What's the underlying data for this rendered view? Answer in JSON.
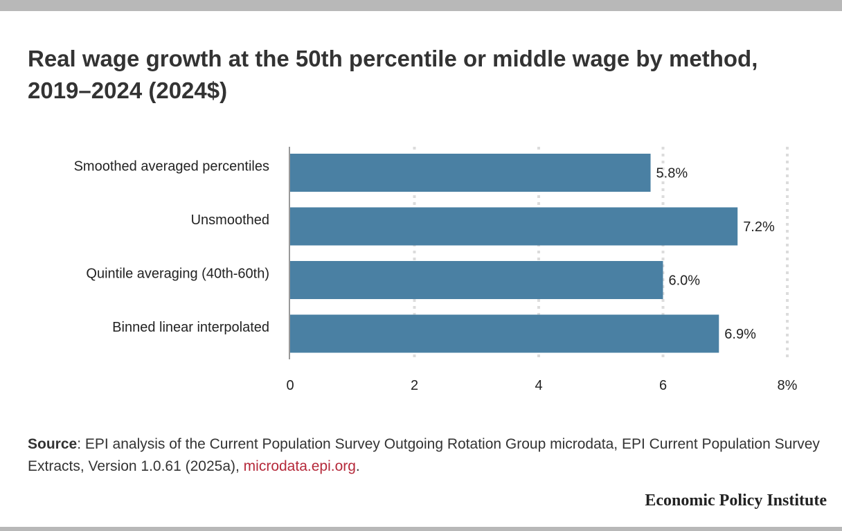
{
  "title": "Real wage growth at the 50th percentile or middle wage by method, 2019–2024 (2024$)",
  "chart_data": {
    "type": "bar",
    "orientation": "horizontal",
    "categories": [
      "Smoothed averaged percentiles",
      "Unsmoothed",
      "Quintile averaging (40th-60th)",
      "Binned linear interpolated"
    ],
    "values": [
      5.8,
      7.2,
      6.0,
      6.9
    ],
    "data_labels": [
      "5.8%",
      "7.2%",
      "6.0%",
      "6.9%"
    ],
    "xlim": [
      0,
      8
    ],
    "ticks": [
      0,
      2,
      4,
      6,
      8
    ],
    "tick_labels": [
      "0",
      "2",
      "4",
      "6",
      "8%"
    ],
    "grid": true,
    "bar_color": "#4a80a3"
  },
  "source": {
    "label": "Source",
    "text": ": EPI analysis of the Current Population Survey Outgoing Rotation Group microdata, EPI Current Population Survey Extracts, Version 1.0.61 (2025a), ",
    "link": "microdata.epi.org",
    "end": "."
  },
  "brand": "Economic Policy Institute",
  "colors": {
    "link": "#b5293a",
    "bar": "#4a80a3",
    "frame": "#b8b8b8"
  }
}
